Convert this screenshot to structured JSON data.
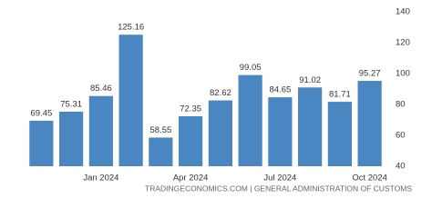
{
  "chart_data": {
    "type": "bar",
    "categories": [
      null,
      null,
      "Jan 2024",
      null,
      null,
      "Apr 2024",
      null,
      null,
      "Jul 2024",
      null,
      null,
      "Oct 2024"
    ],
    "values": [
      69.45,
      75.31,
      85.46,
      125.16,
      58.55,
      72.35,
      82.62,
      99.05,
      84.65,
      91.02,
      81.71,
      95.27
    ],
    "color": "#4a86c1",
    "ylim": [
      40,
      140
    ],
    "yticks": [
      40,
      60,
      80,
      100,
      120,
      140
    ],
    "grid": false,
    "source": "TRADINGECONOMICS.COM | GENERAL ADMINISTRATION OF CUSTOMS"
  }
}
